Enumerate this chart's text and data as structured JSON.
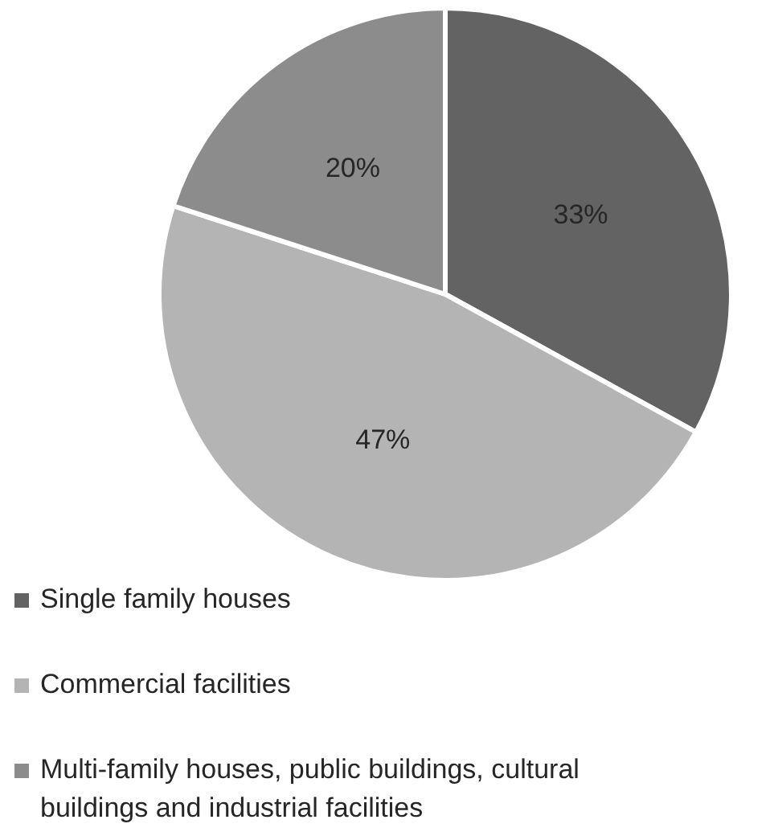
{
  "chart_data": {
    "type": "pie",
    "categories": [
      "Single family houses",
      "Commercial facilities",
      "Multi-family houses, public buildings, cultural buildings and industrial facilities"
    ],
    "values": [
      33,
      47,
      20
    ],
    "value_labels": [
      "33%",
      "47%",
      "20%"
    ],
    "colors": [
      "#636363",
      "#b4b4b4",
      "#8c8c8c"
    ],
    "legend": "bottom"
  }
}
